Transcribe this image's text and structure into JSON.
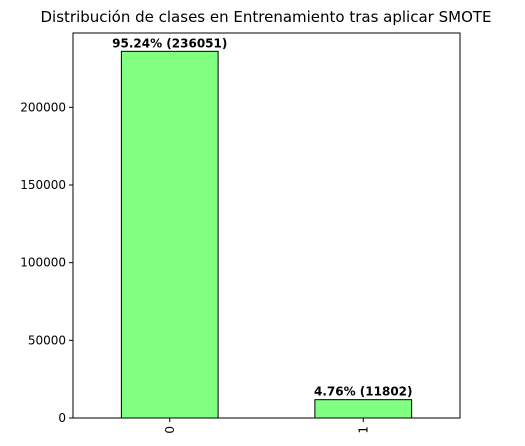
{
  "chart_data": {
    "type": "bar",
    "title": "Distribución de clases en Entrenamiento tras aplicar SMOTE",
    "xlabel": "",
    "ylabel": "",
    "categories": [
      "0",
      "1"
    ],
    "values": [
      236051,
      11802
    ],
    "data_labels": [
      "95.24% (236051)",
      "4.76% (11802)"
    ],
    "y_ticks": [
      0,
      50000,
      100000,
      150000,
      200000
    ],
    "ylim": [
      0,
      247853
    ],
    "x_tick_rotation": 90,
    "bar_color": "#80ff80",
    "bar_edge_color": "#000000",
    "grid": false,
    "legend": "none"
  }
}
